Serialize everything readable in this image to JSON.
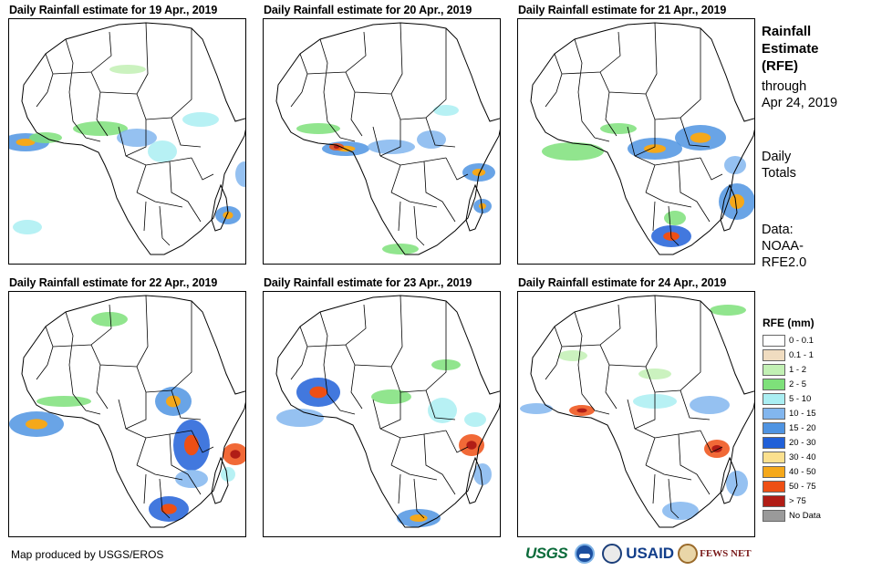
{
  "panels": [
    {
      "title": "Daily Rainfall estimate for 19 Apr., 2019"
    },
    {
      "title": "Daily Rainfall estimate for 20 Apr., 2019"
    },
    {
      "title": "Daily Rainfall estimate for 21 Apr., 2019"
    },
    {
      "title": "Daily Rainfall estimate for 22 Apr., 2019"
    },
    {
      "title": "Daily Rainfall estimate for 23 Apr., 2019"
    },
    {
      "title": "Daily Rainfall estimate for 24 Apr., 2019"
    }
  ],
  "sidebar": {
    "title_line1": "Rainfall",
    "title_line2": "Estimate",
    "title_line3": "(RFE)",
    "through": "through",
    "date": "Apr 24, 2019",
    "daily1": "Daily",
    "daily2": "Totals",
    "data1": "Data:",
    "data2": "NOAA-",
    "data3": "RFE2.0"
  },
  "legend": {
    "title": "RFE (mm)",
    "items": [
      {
        "label": "0 - 0.1",
        "color": "#ffffff"
      },
      {
        "label": "0.1 - 1",
        "color": "#f0dcc0"
      },
      {
        "label": "1 - 2",
        "color": "#c2f0b4"
      },
      {
        "label": "2 - 5",
        "color": "#7ee07a"
      },
      {
        "label": "5 - 10",
        "color": "#aaeef2"
      },
      {
        "label": "10 - 15",
        "color": "#82b6ee"
      },
      {
        "label": "15 - 20",
        "color": "#4f94e2"
      },
      {
        "label": "20 - 30",
        "color": "#2160d8"
      },
      {
        "label": "30 - 40",
        "color": "#fbe08e"
      },
      {
        "label": "40 - 50",
        "color": "#f5a81a"
      },
      {
        "label": "50 - 75",
        "color": "#ee4f14"
      },
      {
        "label": "> 75",
        "color": "#b11d16"
      },
      {
        "label": "No Data",
        "color": "#9a9a9a"
      }
    ]
  },
  "footer": {
    "credit": "Map produced by USGS/EROS",
    "usgs": "USGS",
    "usaid": "USAID",
    "fews": "FEWS NET"
  }
}
